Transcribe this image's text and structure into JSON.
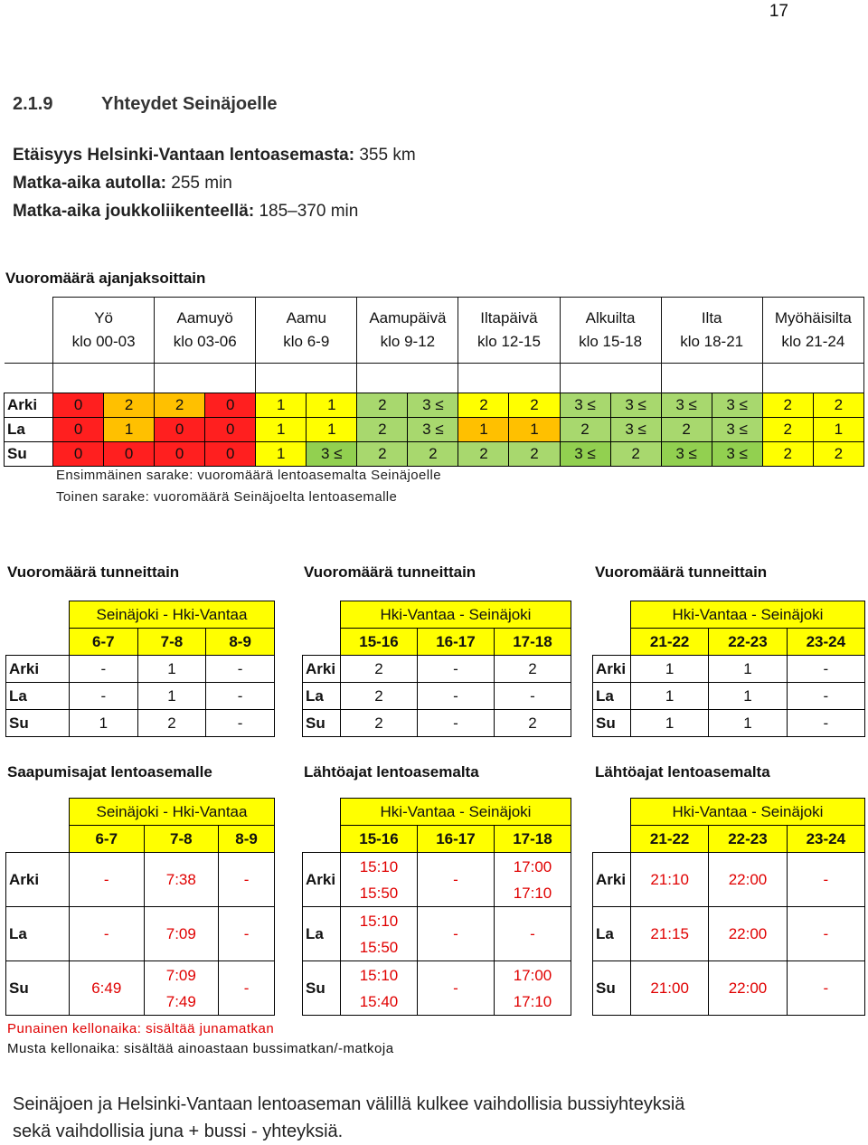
{
  "page_number": "17",
  "section": {
    "number": "2.1.9",
    "title": "Yhteydet Seinäjoelle"
  },
  "info": [
    {
      "label": "Etäisyys Helsinki-Vantaan lentoasemasta:",
      "value": " 355 km"
    },
    {
      "label": "Matka-aika autolla:",
      "value": " 255 min"
    },
    {
      "label": "Matka-aika joukkoliikenteellä:",
      "value": " 185–370 min"
    }
  ],
  "main_table": {
    "title": "Vuoromäärä ajanjaksoittain",
    "periods": [
      {
        "name": "Yö",
        "hours": "klo 00-03"
      },
      {
        "name": "Aamuyö",
        "hours": "klo 03-06"
      },
      {
        "name": "Aamu",
        "hours": "klo 6-9"
      },
      {
        "name": "Aamupäivä",
        "hours": "klo 9-12"
      },
      {
        "name": "Iltapäivä",
        "hours": "klo 12-15"
      },
      {
        "name": "Alkuilta",
        "hours": "klo 15-18"
      },
      {
        "name": "Ilta",
        "hours": "klo 18-21"
      },
      {
        "name": "Myöhäisilta",
        "hours": "klo 21-24"
      }
    ],
    "rows": [
      {
        "day": "Arki",
        "values": [
          "0",
          "2",
          "2",
          "0",
          "1",
          "1",
          "2",
          "3 ≤",
          "2",
          "2",
          "3 ≤",
          "3 ≤",
          "3 ≤",
          "3 ≤",
          "2",
          "2"
        ],
        "colors": [
          "#ff1f1f",
          "#ffc000",
          "#ffc000",
          "#ff1f1f",
          "#ffff00",
          "#ffff00",
          "#a8d86e",
          "#a8d86e",
          "#ffff00",
          "#ffff00",
          "#a8d86e",
          "#a8d86e",
          "#a8d86e",
          "#a8d86e",
          "#ffff00",
          "#ffff00"
        ]
      },
      {
        "day": "La",
        "values": [
          "0",
          "1",
          "0",
          "0",
          "1",
          "1",
          "2",
          "3 ≤",
          "1",
          "1",
          "2",
          "3 ≤",
          "2",
          "3 ≤",
          "2",
          "1"
        ],
        "colors": [
          "#ff1f1f",
          "#ffc000",
          "#ff1f1f",
          "#ff1f1f",
          "#ffff00",
          "#ffff00",
          "#a8d86e",
          "#a8d86e",
          "#ffc000",
          "#ffc000",
          "#a8d86e",
          "#a8d86e",
          "#a8d86e",
          "#a8d86e",
          "#ffff00",
          "#ffff00"
        ]
      },
      {
        "day": "Su",
        "values": [
          "0",
          "0",
          "0",
          "0",
          "1",
          "3 ≤",
          "2",
          "2",
          "2",
          "2",
          "3 ≤",
          "2",
          "3 ≤",
          "3 ≤",
          "2",
          "2"
        ],
        "colors": [
          "#ff1f1f",
          "#ff1f1f",
          "#ff1f1f",
          "#ff1f1f",
          "#ffff00",
          "#92d050",
          "#a8d86e",
          "#a8d86e",
          "#a8d86e",
          "#a8d86e",
          "#92d050",
          "#a8d86e",
          "#92d050",
          "#92d050",
          "#ffff00",
          "#ffff00"
        ]
      }
    ],
    "notes": [
      "Ensimmäinen sarake: vuoromäärä lentoasemalta Seinäjoelle",
      "Toinen sarake: vuoromäärä Seinäjoelta lentoasemalle"
    ]
  },
  "hour_tables": [
    {
      "heading": "Vuoromäärä tunneittain",
      "route": "Seinäjoki - Hki-Vantaa",
      "cols": [
        "6-7",
        "7-8",
        "8-9"
      ],
      "rows": [
        {
          "day": "Arki",
          "vals": [
            "-",
            "1",
            "-"
          ]
        },
        {
          "day": "La",
          "vals": [
            "-",
            "1",
            "-"
          ]
        },
        {
          "day": "Su",
          "vals": [
            "1",
            "2",
            "-"
          ]
        }
      ]
    },
    {
      "heading": "Vuoromäärä tunneittain",
      "route": "Hki-Vantaa - Seinäjoki",
      "cols": [
        "15-16",
        "16-17",
        "17-18"
      ],
      "rows": [
        {
          "day": "Arki",
          "vals": [
            "2",
            "-",
            "2"
          ]
        },
        {
          "day": "La",
          "vals": [
            "2",
            "-",
            "-"
          ]
        },
        {
          "day": "Su",
          "vals": [
            "2",
            "-",
            "2"
          ]
        }
      ]
    },
    {
      "heading": "Vuoromäärä tunneittain",
      "route": "Hki-Vantaa - Seinäjoki",
      "cols": [
        "21-22",
        "22-23",
        "23-24"
      ],
      "rows": [
        {
          "day": "Arki",
          "vals": [
            "1",
            "1",
            "-"
          ]
        },
        {
          "day": "La",
          "vals": [
            "1",
            "1",
            "-"
          ]
        },
        {
          "day": "Su",
          "vals": [
            "1",
            "1",
            "-"
          ]
        }
      ]
    }
  ],
  "time_tables": [
    {
      "heading": "Saapumisajat lentoasemalle",
      "route": "Seinäjoki - Hki-Vantaa",
      "cols": [
        "6-7",
        "7-8",
        "8-9"
      ],
      "rows": [
        {
          "day": "Arki",
          "cells": [
            [
              "-"
            ],
            [
              "7:38"
            ],
            [
              "-"
            ]
          ]
        },
        {
          "day": "La",
          "cells": [
            [
              "-"
            ],
            [
              "7:09"
            ],
            [
              "-"
            ]
          ]
        },
        {
          "day": "Su",
          "cells": [
            [
              "6:49"
            ],
            [
              "7:09",
              "7:49"
            ],
            [
              "-"
            ]
          ]
        }
      ]
    },
    {
      "heading": "Lähtöajat lentoasemalta",
      "route": "Hki-Vantaa - Seinäjoki",
      "cols": [
        "15-16",
        "16-17",
        "17-18"
      ],
      "rows": [
        {
          "day": "Arki",
          "cells": [
            [
              "15:10",
              "15:50"
            ],
            [
              "-"
            ],
            [
              "17:00",
              "17:10"
            ]
          ]
        },
        {
          "day": "La",
          "cells": [
            [
              "15:10",
              "15:50"
            ],
            [
              "-"
            ],
            [
              "-"
            ]
          ]
        },
        {
          "day": "Su",
          "cells": [
            [
              "15:10",
              "15:40"
            ],
            [
              "-"
            ],
            [
              "17:00",
              "17:10"
            ]
          ]
        }
      ]
    },
    {
      "heading": "Lähtöajat lentoasemalta",
      "route": "Hki-Vantaa - Seinäjoki",
      "cols": [
        "21-22",
        "22-23",
        "23-24"
      ],
      "rows": [
        {
          "day": "Arki",
          "cells": [
            [
              "21:10"
            ],
            [
              "22:00"
            ],
            [
              "-"
            ]
          ]
        },
        {
          "day": "La",
          "cells": [
            [
              "21:15"
            ],
            [
              "22:00"
            ],
            [
              "-"
            ]
          ]
        },
        {
          "day": "Su",
          "cells": [
            [
              "21:00"
            ],
            [
              "22:00"
            ],
            [
              "-"
            ]
          ]
        }
      ]
    }
  ],
  "legend": {
    "red_text": "Punainen kellonaika: sisältää junamatkan",
    "black_text": "Musta kellonaika: sisältää ainoastaan bussimatkan/-matkoja",
    "red_color": "#e00000"
  },
  "bottom_text": [
    "Seinäjoen ja Helsinki-Vantaan lentoaseman välillä kulkee vaihdollisia bussiyhteyksiä",
    "sekä vaihdollisia juna + bussi - yhteyksiä."
  ]
}
